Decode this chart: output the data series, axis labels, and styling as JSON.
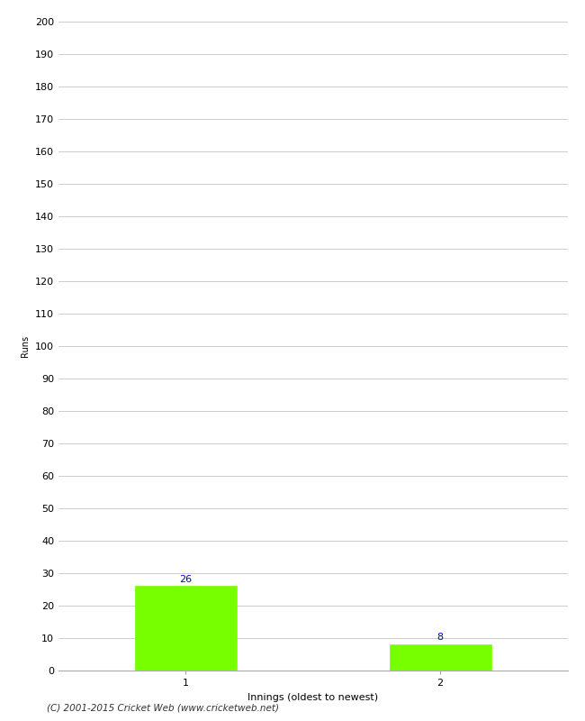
{
  "xlabel": "Innings (oldest to newest)",
  "ylabel": "Runs",
  "categories": [
    "1",
    "2"
  ],
  "values": [
    26,
    8
  ],
  "bar_color": "#77ff00",
  "bar_edge_color": "#77ff00",
  "ylim": [
    0,
    200
  ],
  "yticks": [
    0,
    10,
    20,
    30,
    40,
    50,
    60,
    70,
    80,
    90,
    100,
    110,
    120,
    130,
    140,
    150,
    160,
    170,
    180,
    190,
    200
  ],
  "label_color": "#0000cc",
  "label_fontsize": 8,
  "axis_fontsize": 8,
  "ylabel_fontsize": 7,
  "footer": "(C) 2001-2015 Cricket Web (www.cricketweb.net)",
  "background_color": "#ffffff",
  "grid_color": "#cccccc",
  "bar_positions": [
    0.25,
    0.75
  ],
  "bar_width": 0.2,
  "xlim": [
    0,
    1
  ]
}
